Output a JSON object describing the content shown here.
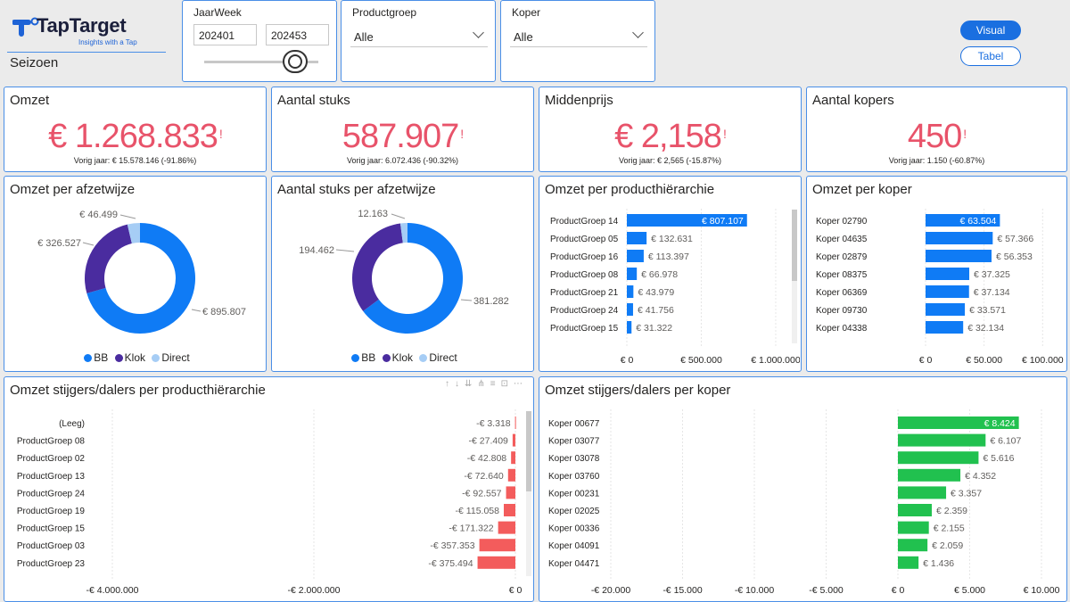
{
  "header": {
    "brand": "TapTarget",
    "tagline": "Insights with a Tap",
    "page_title": "Seizoen"
  },
  "filters": {
    "jaarweek": {
      "label": "JaarWeek",
      "from": "202401",
      "to": "202453",
      "slider_position": 1.0
    },
    "productgroep": {
      "label": "Productgroep",
      "value": "Alle"
    },
    "koper": {
      "label": "Koper",
      "value": "Alle"
    }
  },
  "buttons": {
    "visual": "Visual",
    "tabel": "Tabel"
  },
  "kpis": [
    {
      "title": "Omzet",
      "value": "€ 1.268.833",
      "sub": "Vorig jaar: € 15.578.146 (-91.86%)"
    },
    {
      "title": "Aantal stuks",
      "value": "587.907",
      "sub": "Vorig jaar: 6.072.436 (-90.32%)"
    },
    {
      "title": "Middenprijs",
      "value": "€ 2,158",
      "sub": "Vorig jaar: € 2,565 (-15.87%)"
    },
    {
      "title": "Aantal kopers",
      "value": "450",
      "sub": "Vorig jaar: 1.150 (-60.87%)"
    }
  ],
  "kpi_warning_glyph": "!",
  "colors": {
    "bb": "#0f7bf5",
    "klok": "#4a2c9f",
    "direct": "#a6cdf5",
    "positive": "#21c14f",
    "negative": "#f35c5c",
    "kpi": "#e8536a"
  },
  "chart_data": [
    {
      "id": "donut1",
      "type": "pie",
      "title": "Omzet per afzetwijze",
      "categories": [
        "BB",
        "Klok",
        "Direct"
      ],
      "values": [
        895807,
        326527,
        46499
      ],
      "labels": [
        "€ 895.807",
        "€ 326.527",
        "€ 46.499"
      ]
    },
    {
      "id": "donut2",
      "type": "pie",
      "title": "Aantal stuks per afzetwijze",
      "categories": [
        "BB",
        "Klok",
        "Direct"
      ],
      "values": [
        381282,
        194462,
        12163
      ],
      "labels": [
        "381.282",
        "194.462",
        "12.163"
      ]
    },
    {
      "id": "bar1",
      "type": "bar",
      "title": "Omzet per producthiërarchie",
      "categories": [
        "ProductGroep 14",
        "ProductGroep 05",
        "ProductGroep 16",
        "ProductGroep 08",
        "ProductGroep 21",
        "ProductGroep 24",
        "ProductGroep 15"
      ],
      "values": [
        807107,
        132631,
        113397,
        66978,
        43979,
        41756,
        31322
      ],
      "labels": [
        "€ 807.107",
        "€ 132.631",
        "€ 113.397",
        "€ 66.978",
        "€ 43.979",
        "€ 41.756",
        "€ 31.322"
      ],
      "xlim": [
        0,
        1150000
      ],
      "ticks": [
        0,
        500000,
        1000000
      ],
      "tick_labels": [
        "€ 0",
        "€ 500.000",
        "€ 1.000.000"
      ]
    },
    {
      "id": "bar2",
      "type": "bar",
      "title": "Omzet per koper",
      "categories": [
        "Koper 02790",
        "Koper 04635",
        "Koper 02879",
        "Koper 08375",
        "Koper 06369",
        "Koper 09730",
        "Koper 04338"
      ],
      "values": [
        63504,
        57366,
        56353,
        37325,
        37134,
        33571,
        32134
      ],
      "labels": [
        "€ 63.504",
        "€ 57.366",
        "€ 56.353",
        "€ 37.325",
        "€ 37.134",
        "€ 33.571",
        "€ 32.134"
      ],
      "xlim": [
        0,
        115000
      ],
      "ticks": [
        0,
        50000,
        100000
      ],
      "tick_labels": [
        "€ 0",
        "€ 50.000",
        "€ 100.000"
      ]
    },
    {
      "id": "bar3",
      "type": "bar",
      "title": "Omzet stijgers/dalers per producthiërarchie",
      "categories": [
        "(Leeg)",
        "ProductGroep 08",
        "ProductGroep 02",
        "ProductGroep 13",
        "ProductGroep 24",
        "ProductGroep 19",
        "ProductGroep 15",
        "ProductGroep 03",
        "ProductGroep 23"
      ],
      "values": [
        -3318,
        -27409,
        -42808,
        -72640,
        -92557,
        -115058,
        -171322,
        -357353,
        -375494
      ],
      "labels": [
        "-€ 3.318",
        "-€ 27.409",
        "-€ 42.808",
        "-€ 72.640",
        "-€ 92.557",
        "-€ 115.058",
        "-€ 171.322",
        "-€ 357.353",
        "-€ 375.494"
      ],
      "xlim": [
        -5000000,
        0
      ],
      "ticks": [
        -4000000,
        -2000000,
        0
      ],
      "tick_labels": [
        "-€ 4.000.000",
        "-€ 2.000.000",
        "€ 0"
      ]
    },
    {
      "id": "bar4",
      "type": "bar",
      "title": "Omzet stijgers/dalers per koper",
      "categories": [
        "Koper 00677",
        "Koper 03077",
        "Koper 03078",
        "Koper 03760",
        "Koper 00231",
        "Koper 02025",
        "Koper 00336",
        "Koper 04091",
        "Koper 04471"
      ],
      "values": [
        8424,
        6107,
        5616,
        4352,
        3357,
        2359,
        2155,
        2059,
        1436
      ],
      "labels": [
        "€ 8.424",
        "€ 6.107",
        "€ 5.616",
        "€ 4.352",
        "€ 3.357",
        "€ 2.359",
        "€ 2.155",
        "€ 2.059",
        "€ 1.436"
      ],
      "xlim": [
        -20000,
        10000
      ],
      "ticks": [
        -20000,
        -15000,
        -10000,
        -5000,
        0,
        5000,
        10000
      ],
      "tick_labels": [
        "-€ 20.000",
        "-€ 15.000",
        "-€ 10.000",
        "-€ 5.000",
        "€ 0",
        "€ 5.000",
        "€ 10.000"
      ]
    }
  ]
}
